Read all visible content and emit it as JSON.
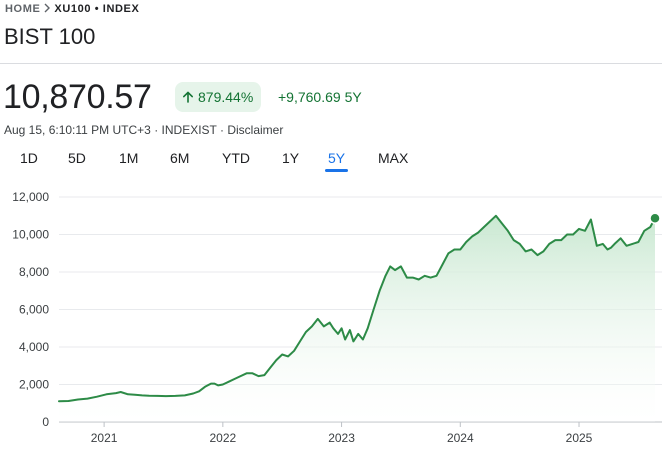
{
  "breadcrumb": {
    "home": "HOME",
    "current": "XU100 • INDEX"
  },
  "title": "BIST 100",
  "price": "10,870.57",
  "change": {
    "percent": "879.44%",
    "absolute": "+9,760.69",
    "period": "5Y"
  },
  "meta": {
    "timestamp": "Aug 15, 6:10:11 PM UTC+3",
    "separator": " · ",
    "exchange": "INDEXIST",
    "disclaimer": "Disclaimer"
  },
  "ranges": {
    "tabs": [
      "1D",
      "5D",
      "1M",
      "6M",
      "YTD",
      "1Y",
      "5Y",
      "MAX"
    ],
    "active": "5Y"
  },
  "colors": {
    "line": "#2d8b47",
    "fill_top": "#c9e8d1",
    "positive": "#137333",
    "accent": "#1a73e8",
    "chip_bg": "#e6f4ea"
  },
  "chart_data": {
    "type": "area",
    "title": "",
    "xlabel": "",
    "ylabel": "",
    "xlim": [
      2020.62,
      2025.64
    ],
    "ylim": [
      0,
      12000
    ],
    "yticks": [
      0,
      2000,
      4000,
      6000,
      8000,
      10000,
      12000
    ],
    "ytick_labels": [
      "0",
      "2,000",
      "4,000",
      "6,000",
      "8,000",
      "10,000",
      "12,000"
    ],
    "xticks": [
      2021,
      2022,
      2023,
      2024,
      2025
    ],
    "xtick_labels": [
      "2021",
      "2022",
      "2023",
      "2024",
      "2025"
    ],
    "grid": "horizontal",
    "legend": "none",
    "end_marker": true,
    "series": [
      {
        "x": [
          2020.62,
          2020.7,
          2020.78,
          2020.86,
          2020.94,
          2021.02,
          2021.1,
          2021.14,
          2021.2,
          2021.26,
          2021.32,
          2021.38,
          2021.45,
          2021.52,
          2021.6,
          2021.68,
          2021.75,
          2021.8,
          2021.85,
          2021.9,
          2021.93,
          2021.96,
          2022.0,
          2022.05,
          2022.1,
          2022.14,
          2022.2,
          2022.25,
          2022.3,
          2022.35,
          2022.4,
          2022.45,
          2022.5,
          2022.55,
          2022.6,
          2022.65,
          2022.7,
          2022.75,
          2022.8,
          2022.85,
          2022.9,
          2022.93,
          2022.97,
          2023.0,
          2023.03,
          2023.07,
          2023.1,
          2023.14,
          2023.18,
          2023.22,
          2023.27,
          2023.32,
          2023.37,
          2023.41,
          2023.45,
          2023.5,
          2023.55,
          2023.6,
          2023.65,
          2023.7,
          2023.75,
          2023.8,
          2023.85,
          2023.9,
          2023.95,
          2024.0,
          2024.05,
          2024.1,
          2024.15,
          2024.2,
          2024.25,
          2024.3,
          2024.35,
          2024.4,
          2024.45,
          2024.5,
          2024.55,
          2024.6,
          2024.65,
          2024.7,
          2024.75,
          2024.8,
          2024.85,
          2024.9,
          2024.95,
          2025.0,
          2025.05,
          2025.1,
          2025.15,
          2025.2,
          2025.24,
          2025.27,
          2025.3,
          2025.35,
          2025.4,
          2025.45,
          2025.5,
          2025.55,
          2025.6,
          2025.64
        ],
        "values": [
          1110,
          1120,
          1200,
          1250,
          1350,
          1480,
          1540,
          1600,
          1480,
          1450,
          1420,
          1400,
          1390,
          1380,
          1390,
          1420,
          1520,
          1640,
          1880,
          2050,
          2050,
          1950,
          2000,
          2150,
          2300,
          2420,
          2600,
          2600,
          2450,
          2500,
          2900,
          3300,
          3600,
          3500,
          3800,
          4300,
          4800,
          5100,
          5500,
          5100,
          5300,
          5000,
          4700,
          5000,
          4400,
          4900,
          4300,
          4700,
          4400,
          5000,
          6000,
          7000,
          7800,
          8300,
          8100,
          8300,
          7700,
          7700,
          7600,
          7800,
          7700,
          7800,
          8400,
          9000,
          9200,
          9200,
          9600,
          9900,
          10100,
          10400,
          10700,
          11000,
          10600,
          10200,
          9700,
          9500,
          9100,
          9200,
          8900,
          9100,
          9500,
          9700,
          9700,
          10000,
          10000,
          10300,
          10200,
          10800,
          9400,
          9500,
          9200,
          9300,
          9500,
          9800,
          9400,
          9500,
          9600,
          10200,
          10400,
          10870
        ]
      }
    ]
  }
}
